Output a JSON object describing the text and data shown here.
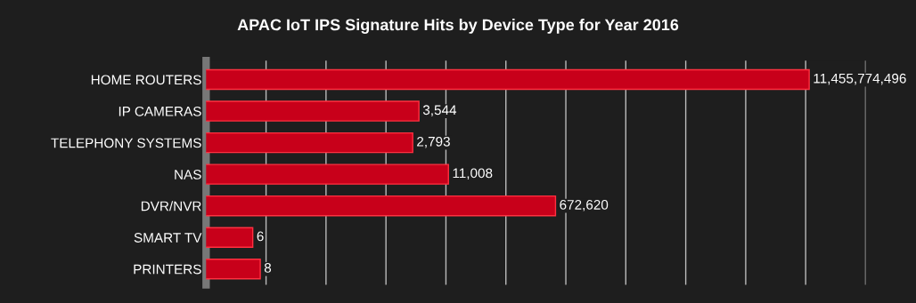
{
  "chart_data": {
    "type": "bar",
    "orientation": "horizontal",
    "title": "APAC IoT IPS Signature Hits by Device Type for Year 2016",
    "categories": [
      "HOME ROUTERS",
      "IP CAMERAS",
      "TELEPHONY SYSTEMS",
      "NAS",
      "DVR/NVR",
      "SMART TV",
      "PRINTERS"
    ],
    "values": [
      11455774496,
      3544,
      2793,
      11008,
      672620,
      6,
      8
    ],
    "color": "#c8001a",
    "log": "x",
    "xlim": [
      1,
      100000000000
    ],
    "xticks": [
      {
        "value": 10,
        "label": null
      },
      {
        "value": 100,
        "label": null
      },
      {
        "value": 1000,
        "label": null
      },
      {
        "value": 10000,
        "label": null
      },
      {
        "value": 100000,
        "label": null
      },
      {
        "value": 1000000,
        "label": null
      },
      {
        "value": 10000000,
        "label": null
      },
      {
        "value": 100000000,
        "label": null
      },
      {
        "value": 1000000000,
        "label": null
      },
      {
        "value": 10000000000,
        "label": null
      },
      {
        "value": 100000000000,
        "label": null
      }
    ],
    "tick_labels": "y",
    "grid": "x",
    "value_labels": [
      "11,455,774,496",
      "3,544",
      "2,793",
      "11,008",
      "672,620",
      "6",
      "8"
    ]
  }
}
